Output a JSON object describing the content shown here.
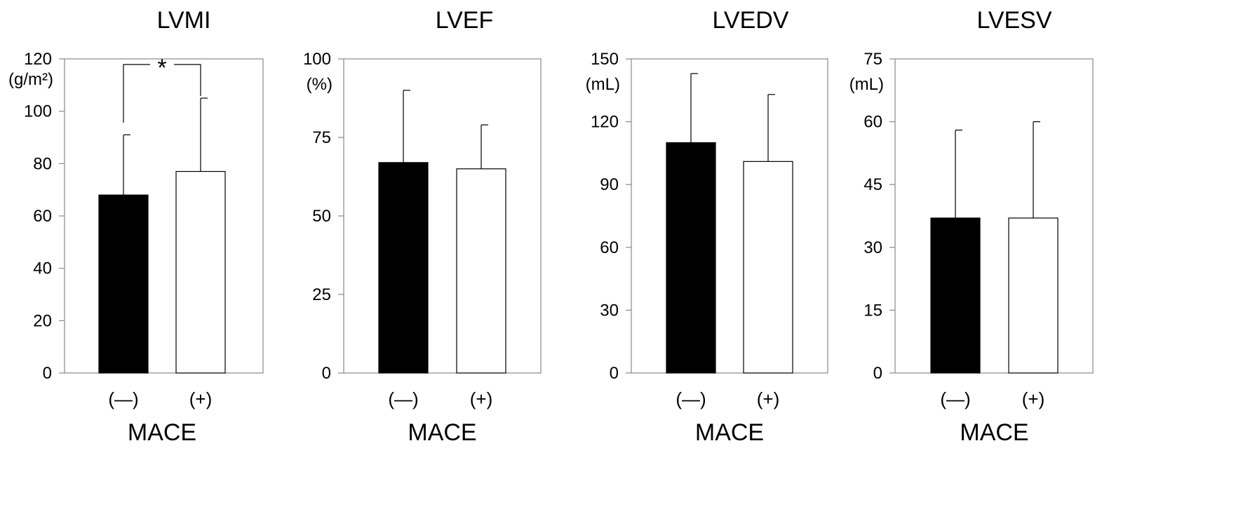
{
  "chart_data": [
    {
      "type": "bar",
      "title": "LVMI",
      "ylabel": "(g/m²)",
      "xlabel": "MACE",
      "categories": [
        "(—)",
        "(+)"
      ],
      "ylim": [
        0,
        120
      ],
      "yticks": [
        0,
        20,
        40,
        60,
        80,
        100,
        120
      ],
      "series": [
        {
          "values": [
            68,
            77
          ],
          "errors": [
            23,
            28
          ],
          "colors": [
            "#000000",
            "#ffffff"
          ]
        }
      ],
      "annotation": "*"
    },
    {
      "type": "bar",
      "title": "LVEF",
      "ylabel": "(%)",
      "xlabel": "MACE",
      "categories": [
        "(—)",
        "(+)"
      ],
      "ylim": [
        0,
        100
      ],
      "yticks": [
        0,
        25,
        50,
        75,
        100
      ],
      "series": [
        {
          "values": [
            67,
            65
          ],
          "errors": [
            23,
            14
          ],
          "colors": [
            "#000000",
            "#ffffff"
          ]
        }
      ]
    },
    {
      "type": "bar",
      "title": "LVEDV",
      "ylabel": "(mL)",
      "xlabel": "MACE",
      "categories": [
        "(—)",
        "(+)"
      ],
      "ylim": [
        0,
        150
      ],
      "yticks": [
        0,
        30,
        60,
        90,
        120,
        150
      ],
      "series": [
        {
          "values": [
            110,
            101
          ],
          "errors": [
            33,
            32
          ],
          "colors": [
            "#000000",
            "#ffffff"
          ]
        }
      ]
    },
    {
      "type": "bar",
      "title": "LVESV",
      "ylabel": "(mL)",
      "xlabel": "MACE",
      "categories": [
        "(—)",
        "(+)"
      ],
      "ylim": [
        0,
        75
      ],
      "yticks": [
        0,
        15,
        30,
        45,
        60,
        75
      ],
      "series": [
        {
          "values": [
            37,
            37
          ],
          "errors": [
            21,
            23
          ],
          "colors": [
            "#000000",
            "#ffffff"
          ]
        }
      ]
    }
  ]
}
